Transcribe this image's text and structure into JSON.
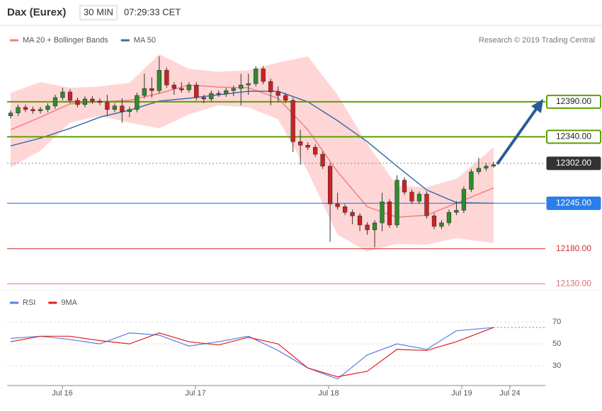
{
  "header": {
    "instrument": "Dax (Eurex)",
    "interval": "30 MIN",
    "time": "07:29:33 CET",
    "source": "Research © 2019 Trading Central"
  },
  "chart_data": [
    {
      "type": "candlestick",
      "xlim": [
        -0.48,
        71.97
      ],
      "ylim": [
        12121,
        12495
      ],
      "up_color": "#2e8b2e",
      "down_color": "#cc2222",
      "open": [
        12370,
        12374,
        12382,
        12379,
        12377,
        12379,
        12384,
        12396,
        12404,
        12392,
        12386,
        12394,
        12391,
        12389,
        12379,
        12384,
        12376,
        12379,
        12399,
        12409,
        12406,
        12435,
        12414,
        12409,
        12407,
        12414,
        12396,
        12394,
        12402,
        12401,
        12406,
        12409,
        12414,
        12416,
        12437,
        12419,
        12404,
        12399,
        12392,
        12333,
        12328,
        12325,
        12315,
        12298,
        12244,
        12240,
        12232,
        12227,
        12214,
        12207,
        12217,
        12247,
        12214,
        12278,
        12261,
        12248,
        12258,
        12227,
        12212,
        12217,
        12232,
        12235,
        12265,
        12290,
        12295,
        12298
      ],
      "high": [
        12378,
        12386,
        12386,
        12383,
        12383,
        12388,
        12400,
        12410,
        12408,
        12396,
        12398,
        12398,
        12395,
        12400,
        12388,
        12395,
        12383,
        12403,
        12430,
        12425,
        12455,
        12439,
        12418,
        12418,
        12418,
        12418,
        12400,
        12406,
        12406,
        12410,
        12413,
        12430,
        12430,
        12441,
        12441,
        12423,
        12412,
        12403,
        12396,
        12350,
        12332,
        12329,
        12319,
        12302,
        12260,
        12244,
        12236,
        12231,
        12218,
        12221,
        12260,
        12251,
        12285,
        12282,
        12265,
        12262,
        12262,
        12231,
        12221,
        12236,
        12248,
        12269,
        12294,
        12310,
        12302,
        12304
      ],
      "low": [
        12366,
        12370,
        12375,
        12373,
        12373,
        12375,
        12380,
        12392,
        12388,
        12382,
        12382,
        12387,
        12385,
        12370,
        12375,
        12360,
        12368,
        12375,
        12395,
        12396,
        12402,
        12410,
        12400,
        12403,
        12403,
        12392,
        12388,
        12390,
        12397,
        12397,
        12398,
        12385,
        12400,
        12412,
        12415,
        12385,
        12390,
        12388,
        12318,
        12300,
        12321,
        12311,
        12294,
        12190,
        12236,
        12228,
        12215,
        12205,
        12200,
        12182,
        12205,
        12210,
        12210,
        12257,
        12244,
        12244,
        12223,
        12208,
        12208,
        12213,
        12228,
        12231,
        12261,
        12286,
        12291,
        12296
      ],
      "close": [
        12374,
        12382,
        12379,
        12377,
        12379,
        12384,
        12396,
        12404,
        12392,
        12386,
        12394,
        12391,
        12389,
        12379,
        12384,
        12376,
        12379,
        12399,
        12409,
        12406,
        12435,
        12414,
        12409,
        12407,
        12414,
        12396,
        12394,
        12402,
        12401,
        12406,
        12409,
        12414,
        12416,
        12437,
        12419,
        12404,
        12399,
        12392,
        12333,
        12328,
        12325,
        12315,
        12298,
        12244,
        12240,
        12232,
        12227,
        12214,
        12207,
        12217,
        12247,
        12214,
        12278,
        12261,
        12248,
        12258,
        12227,
        12212,
        12217,
        12232,
        12235,
        12265,
        12290,
        12295,
        12298,
        12300
      ],
      "overlay_x": [
        0,
        4,
        8,
        12,
        16,
        20,
        24,
        28,
        32,
        36,
        40,
        44,
        48,
        52,
        56,
        60,
        65
      ],
      "series": [
        {
          "name": "MA 20 + Bollinger Bands",
          "color": "#f08080",
          "band_color": "#ffd6d6",
          "values": [
            12350,
            12368,
            12387,
            12390,
            12392,
            12402,
            12414,
            12411,
            12410,
            12395,
            12350,
            12290,
            12240,
            12225,
            12228,
            12245,
            12267
          ],
          "upper": [
            12403,
            12418,
            12410,
            12412,
            12417,
            12458,
            12437,
            12433,
            12435,
            12446,
            12455,
            12400,
            12330,
            12270,
            12268,
            12280,
            12325
          ],
          "lower": [
            12296,
            12320,
            12360,
            12370,
            12360,
            12352,
            12372,
            12385,
            12382,
            12365,
            12290,
            12200,
            12176,
            12187,
            12186,
            12195,
            12188
          ]
        },
        {
          "name": "MA 50",
          "color": "#3a6ea5",
          "values": [
            12327,
            12338,
            12352,
            12368,
            12378,
            12391,
            12395,
            12400,
            12405,
            12405,
            12390,
            12363,
            12333,
            12298,
            12264,
            12246,
            12245
          ]
        }
      ],
      "levels": [
        {
          "value": 12390,
          "label": "12390.00",
          "color": "#5aa000",
          "style": "box"
        },
        {
          "value": 12340,
          "label": "12340.00",
          "color": "#5aa000",
          "style": "box"
        },
        {
          "value": 12302,
          "label": "12302.00",
          "color": "#333333",
          "style": "current"
        },
        {
          "value": 12245,
          "label": "12245.00",
          "color": "#2b7de9",
          "style": "fill"
        },
        {
          "value": 12180,
          "label": "12180.00",
          "color": "#d33333",
          "style": "text"
        },
        {
          "value": 12130,
          "label": "12130.00",
          "color": "#e07070",
          "style": "text"
        }
      ]
    },
    {
      "type": "line",
      "xlim": [
        -0.48,
        71.97
      ],
      "ylim": [
        12,
        94
      ],
      "x": [
        0,
        4,
        8,
        12,
        16,
        20,
        24,
        28,
        32,
        36,
        40,
        44,
        48,
        52,
        56,
        60,
        65
      ],
      "yticks": [
        30,
        50,
        70
      ],
      "xticks": [
        {
          "value": 6.96,
          "label": "Jul 16"
        },
        {
          "value": 24.88,
          "label": "Jul 17"
        },
        {
          "value": 42.8,
          "label": "Jul 18"
        },
        {
          "value": 60.72,
          "label": "Jul 19"
        },
        {
          "value": 67.2,
          "label": "Jul 24"
        }
      ],
      "series": [
        {
          "name": "RSI",
          "color": "#5b7fde",
          "values": [
            55,
            57,
            54,
            50,
            60,
            58,
            48,
            52,
            57,
            44,
            28,
            18,
            40,
            50,
            45,
            62,
            65
          ]
        },
        {
          "name": "9MA",
          "color": "#e02020",
          "values": [
            52,
            57,
            57,
            53,
            50,
            60,
            52,
            49,
            56,
            50,
            28,
            20,
            25,
            45,
            44,
            52,
            65
          ]
        }
      ]
    }
  ]
}
